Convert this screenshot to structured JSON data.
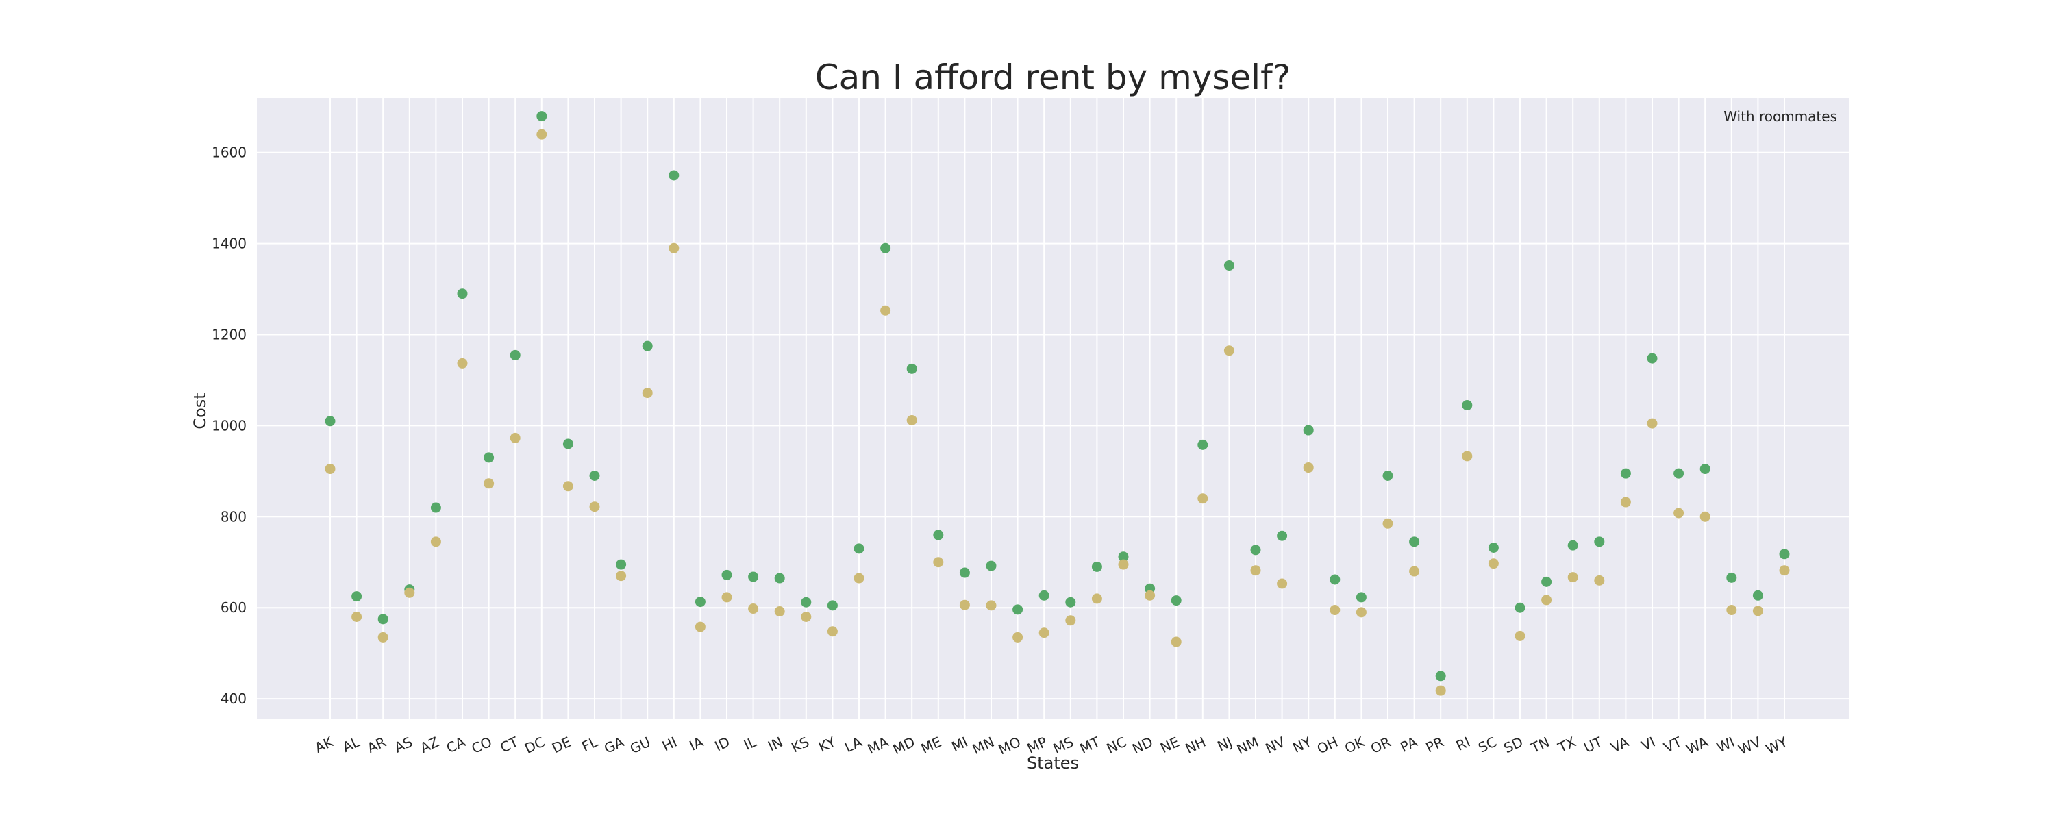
{
  "chart_data": {
    "type": "scatter",
    "title": "Can I afford rent by myself?",
    "xlabel": "States",
    "ylabel": "Cost",
    "ylim": [
      355,
      1720
    ],
    "yticks": [
      400,
      600,
      800,
      1000,
      1200,
      1400,
      1600
    ],
    "grid": true,
    "legend_text": "With roommates",
    "legend_position": "top-right",
    "background_color": "#eaeaf2",
    "grid_color": "#ffffff",
    "categories": [
      "AK",
      "AL",
      "AR",
      "AS",
      "AZ",
      "CA",
      "CO",
      "CT",
      "DC",
      "DE",
      "FL",
      "GA",
      "GU",
      "HI",
      "IA",
      "ID",
      "IL",
      "IN",
      "KS",
      "KY",
      "LA",
      "MA",
      "MD",
      "ME",
      "MI",
      "MN",
      "MO",
      "MP",
      "MS",
      "MT",
      "NC",
      "ND",
      "NE",
      "NH",
      "NJ",
      "NM",
      "NV",
      "NY",
      "OH",
      "OK",
      "OR",
      "PA",
      "PR",
      "RI",
      "SC",
      "SD",
      "TN",
      "TX",
      "UT",
      "VA",
      "VI",
      "VT",
      "WA",
      "WI",
      "WV",
      "WY"
    ],
    "series": [
      {
        "color": "#55a868",
        "values": [
          1010,
          625,
          575,
          640,
          820,
          1290,
          930,
          1155,
          1680,
          960,
          890,
          695,
          1175,
          1550,
          613,
          672,
          668,
          665,
          612,
          605,
          730,
          1390,
          1125,
          760,
          677,
          692,
          596,
          627,
          612,
          690,
          712,
          642,
          616,
          958,
          1352,
          727,
          758,
          990,
          662,
          623,
          890,
          745,
          450,
          1045,
          732,
          600,
          657,
          737,
          745,
          895,
          1148,
          895,
          905,
          666,
          627,
          718
        ]
      },
      {
        "color": "#ccb974",
        "values": [
          905,
          580,
          535,
          633,
          745,
          1137,
          873,
          973,
          1640,
          867,
          822,
          670,
          1072,
          1390,
          558,
          623,
          598,
          592,
          580,
          548,
          665,
          1253,
          1012,
          700,
          606,
          605,
          535,
          545,
          572,
          620,
          695,
          627,
          525,
          840,
          1165,
          682,
          653,
          908,
          595,
          590,
          785,
          680,
          418,
          933,
          697,
          538,
          617,
          667,
          660,
          832,
          1005,
          808,
          800,
          595,
          593,
          682
        ]
      }
    ]
  }
}
